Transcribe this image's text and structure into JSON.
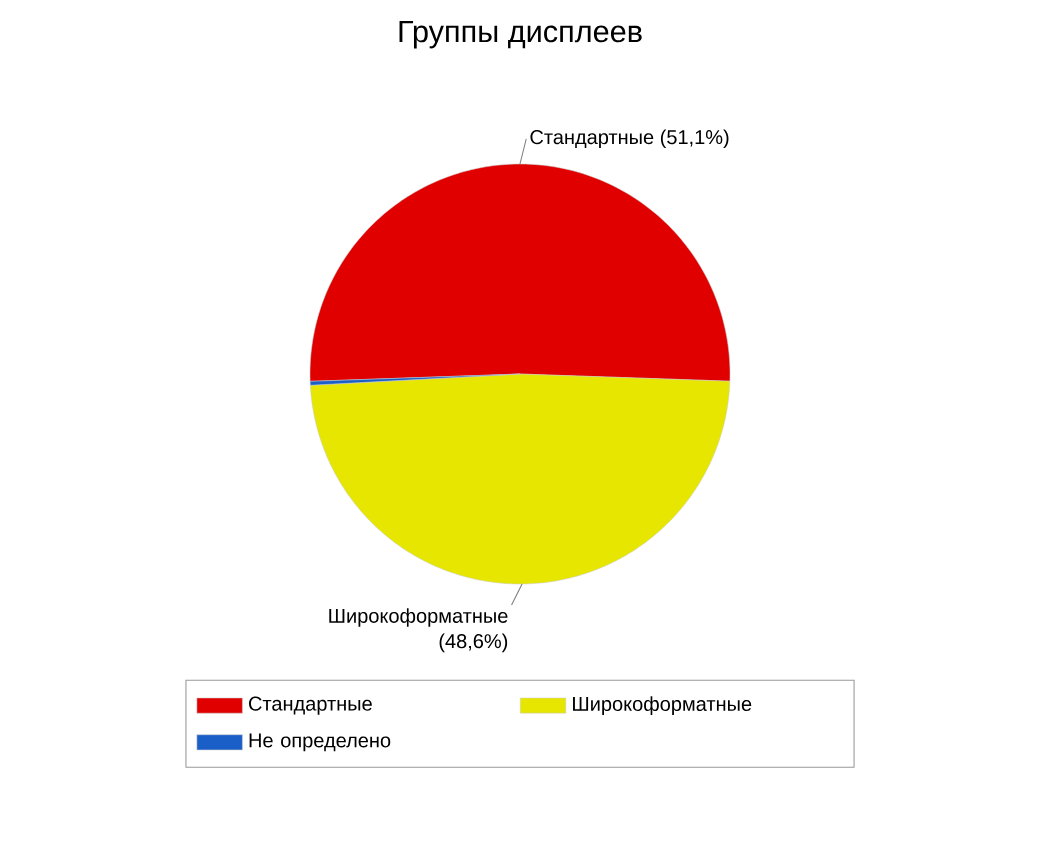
{
  "chart_data": {
    "type": "pie",
    "title": "Группы дисплеев",
    "categories": [
      "Стандартные",
      "Широкоформатные",
      "Не определено"
    ],
    "values": [
      51.1,
      48.6,
      0.3
    ],
    "colors": [
      "#e00000",
      "#e6e600",
      "#1a5fc8"
    ],
    "value_labels": [
      "Стандартные (51,1%)",
      "Широкоформатные (48,6%)",
      null
    ],
    "legend": "bottom"
  }
}
